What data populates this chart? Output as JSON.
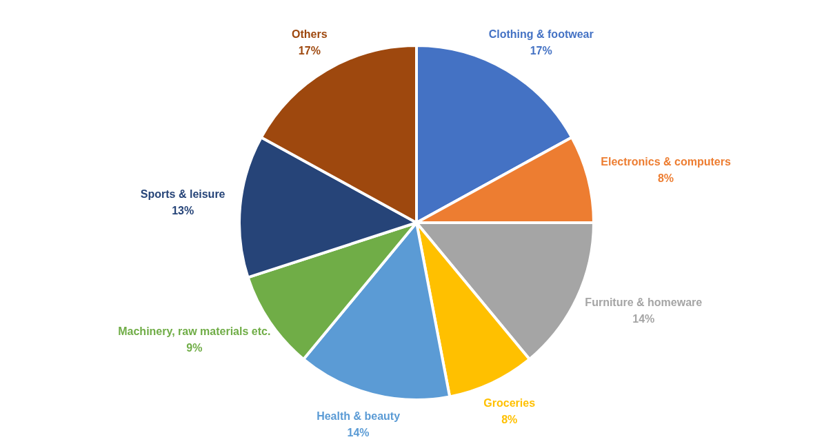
{
  "chart_data": {
    "type": "pie",
    "categories": [
      "Clothing & footwear",
      "Electronics & computers",
      "Furniture & homeware",
      "Groceries",
      "Health & beauty",
      "Machinery, raw materials etc.",
      "Sports & leisure",
      "Others"
    ],
    "values": [
      17,
      8,
      14,
      8,
      14,
      9,
      13,
      17
    ],
    "value_labels": [
      "17%",
      "8%",
      "14%",
      "8%",
      "14%",
      "9%",
      "13%",
      "17%"
    ],
    "colors": [
      "#4472c4",
      "#ed7d31",
      "#a5a5a5",
      "#ffc000",
      "#5b9bd5",
      "#70ad47",
      "#264478",
      "#9e480e"
    ],
    "legend": false
  }
}
